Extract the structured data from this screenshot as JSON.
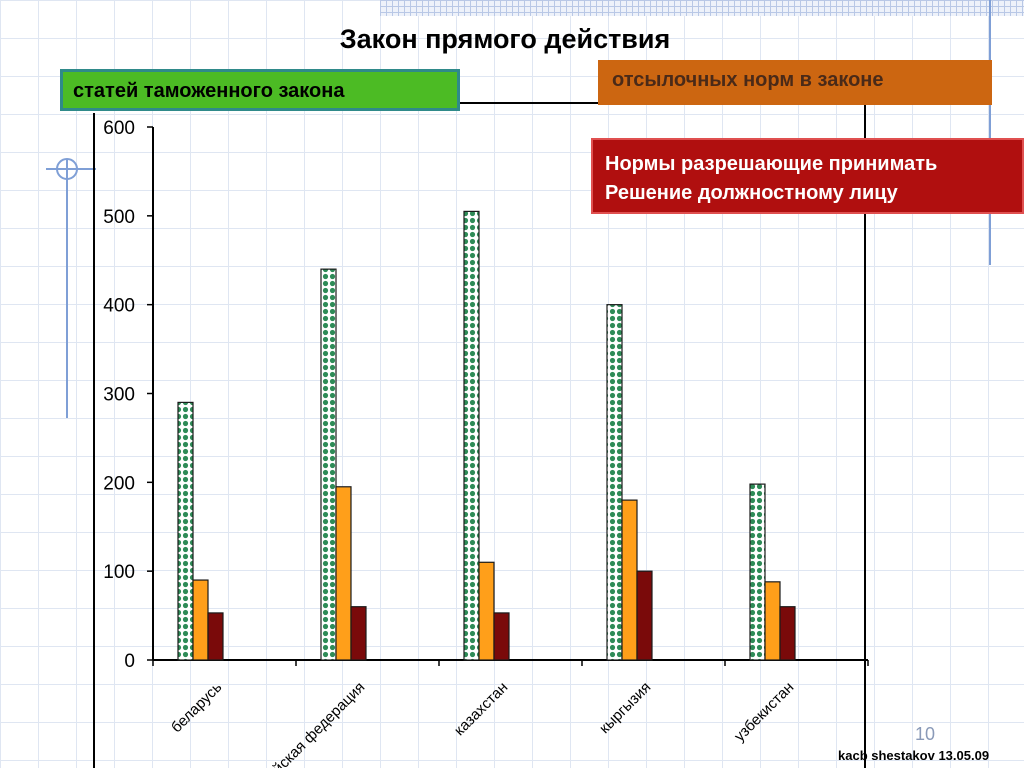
{
  "slide": {
    "title": "Закон прямого действия",
    "legend_green": "статей таможенного закона",
    "legend_orange": "отсылочных норм в законе",
    "legend_red_line1": "Нормы разрешающие принимать",
    "legend_red_line2": "Решение должностному лицу",
    "page_number": "10",
    "footer": "kacb shestakov 13.05.09"
  },
  "colors": {
    "green": "#2e8b57",
    "orange": "#ff9f1a",
    "darkred": "#7a0a0a"
  },
  "chart_data": {
    "type": "bar",
    "categories": [
      "беларусь",
      "йская федерация",
      "казахстан",
      "кыргызия",
      "узбекистан"
    ],
    "series": [
      {
        "name": "статей таможенного закона",
        "values": [
          290,
          440,
          505,
          400,
          198
        ]
      },
      {
        "name": "отсылочных норм в законе",
        "values": [
          90,
          195,
          110,
          180,
          88
        ]
      },
      {
        "name": "Нормы разрешающие принимать Решение должностному лицу",
        "values": [
          53,
          60,
          53,
          100,
          60
        ]
      }
    ],
    "ylim": [
      0,
      600
    ],
    "yticks": [
      0,
      100,
      200,
      300,
      400,
      500,
      600
    ],
    "grid": false
  }
}
